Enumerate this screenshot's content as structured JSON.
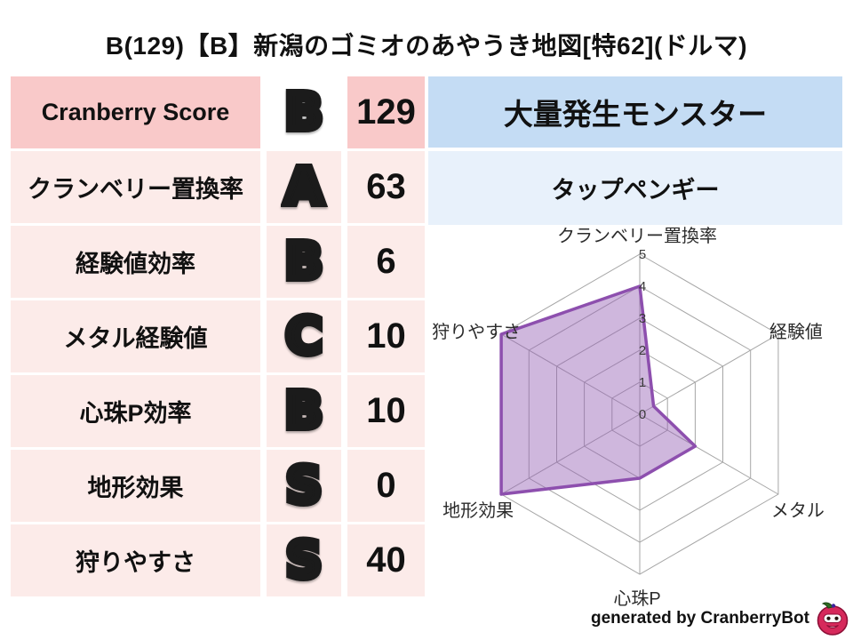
{
  "title": "B(129)【B】新潟のゴミオのあやうき地図[特62](ドルマ)",
  "stats_table": {
    "rows": [
      {
        "label": "Cranberry Score",
        "grade": "B",
        "grade_style": "silver",
        "value": "129",
        "highlight": true
      },
      {
        "label": "クランベリー置換率",
        "grade": "A",
        "grade_style": "gold",
        "value": "63",
        "highlight": false
      },
      {
        "label": "経験値効率",
        "grade": "B",
        "grade_style": "silver",
        "value": "6",
        "highlight": false
      },
      {
        "label": "メタル経験値",
        "grade": "C",
        "grade_style": "silver",
        "value": "10",
        "highlight": false
      },
      {
        "label": "心珠P効率",
        "grade": "B",
        "grade_style": "silver",
        "value": "10",
        "highlight": false
      },
      {
        "label": "地形効果",
        "grade": "S",
        "grade_style": "rainbow",
        "value": "0",
        "highlight": false
      },
      {
        "label": "狩りやすさ",
        "grade": "S",
        "grade_style": "rainbow",
        "value": "40",
        "highlight": false
      }
    ]
  },
  "monster_panel": {
    "header": "大量発生モンスター",
    "monster_name": "タップペンギー"
  },
  "chart_data": {
    "type": "radar",
    "categories": [
      "クランベリー置換率",
      "経験値",
      "メタル",
      "心珠P",
      "地形効果",
      "狩りやすさ"
    ],
    "values": [
      4,
      0.5,
      2,
      2,
      5,
      5
    ],
    "rmin": 0,
    "rmax": 5,
    "ring_step": 1,
    "ring_labels": [
      "0",
      "1",
      "2",
      "3",
      "4",
      "5"
    ],
    "grid": true,
    "legend_position": "none",
    "fill_color": "rgba(148,96,180,0.45)",
    "stroke_color": "#8d4fae",
    "grid_color": "#a6a6a6"
  },
  "footer": {
    "credit": "generated by CranberryBot",
    "logo": "cranberry-bot-icon"
  },
  "colors": {
    "row_highlight_bg": "#f9c9c9",
    "row_bg": "#fcebe9",
    "grade_cell_highlight_bg": "#ffffff",
    "panel_header_bg": "#c4dcf4",
    "panel_sub_bg": "#e8f1fb",
    "text": "#111111"
  }
}
